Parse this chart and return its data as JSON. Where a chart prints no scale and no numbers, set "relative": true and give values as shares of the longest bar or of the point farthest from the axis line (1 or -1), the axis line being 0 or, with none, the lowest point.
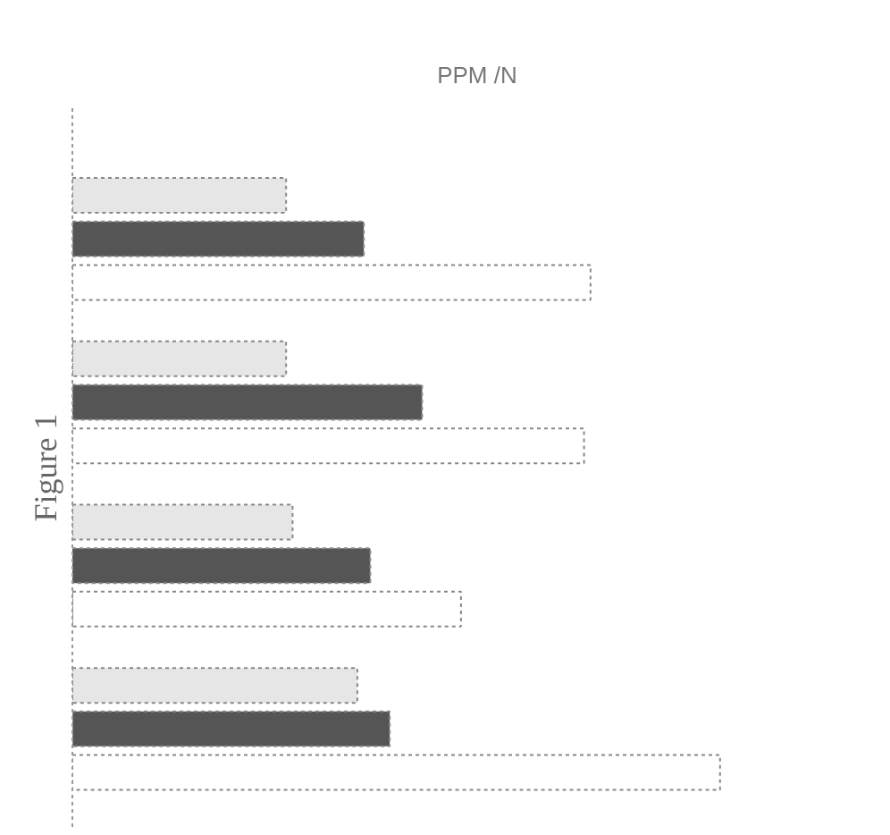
{
  "chart_data": {
    "type": "bar",
    "orientation": "horizontal",
    "relative": true,
    "xlabel": "PPM /N",
    "annotations": [
      "Figure 1"
    ],
    "categories": [
      null,
      null,
      null,
      null
    ],
    "series": [
      {
        "color": "#e6e6e6",
        "values": [
          0.33,
          0.33,
          0.34,
          0.44
        ]
      },
      {
        "color": "#555555",
        "values": [
          0.45,
          0.54,
          0.46,
          0.49
        ]
      },
      {
        "color": "#ffffff",
        "values": [
          0.8,
          0.79,
          0.6,
          1.0
        ]
      }
    ]
  }
}
